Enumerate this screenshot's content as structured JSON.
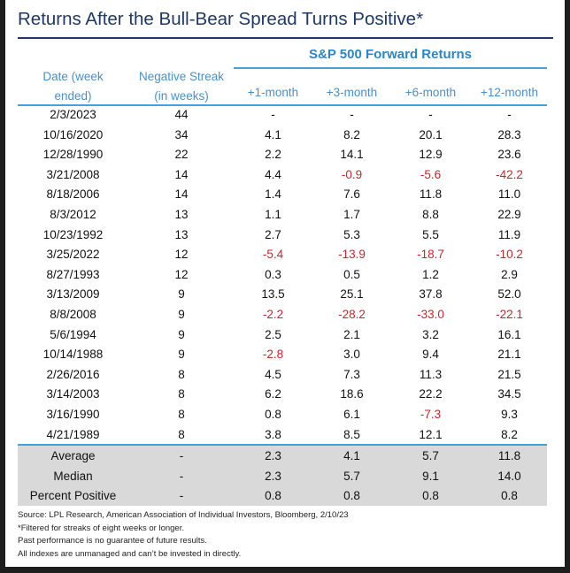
{
  "chart_data": {
    "type": "table",
    "title": "Returns After the Bull-Bear Spread Turns Positive*",
    "group_header": "S&P 500 Forward Returns",
    "columns": [
      "Date (week ended)",
      "Negative Streak (in weeks)",
      "+1-month",
      "+3-month",
      "+6-month",
      "+12-month"
    ],
    "rows": [
      [
        "2/3/2023",
        "44",
        "-",
        "-",
        "-",
        "-"
      ],
      [
        "10/16/2020",
        "34",
        "4.1",
        "8.2",
        "20.1",
        "28.3"
      ],
      [
        "12/28/1990",
        "22",
        "2.2",
        "14.1",
        "12.9",
        "23.6"
      ],
      [
        "3/21/2008",
        "14",
        "4.4",
        "-0.9",
        "-5.6",
        "-42.2"
      ],
      [
        "8/18/2006",
        "14",
        "1.4",
        "7.6",
        "11.8",
        "11.0"
      ],
      [
        "8/3/2012",
        "13",
        "1.1",
        "1.7",
        "8.8",
        "22.9"
      ],
      [
        "10/23/1992",
        "13",
        "2.7",
        "5.3",
        "5.5",
        "11.9"
      ],
      [
        "3/25/2022",
        "12",
        "-5.4",
        "-13.9",
        "-18.7",
        "-10.2"
      ],
      [
        "8/27/1993",
        "12",
        "0.3",
        "0.5",
        "1.2",
        "2.9"
      ],
      [
        "3/13/2009",
        "9",
        "13.5",
        "25.1",
        "37.8",
        "52.0"
      ],
      [
        "8/8/2008",
        "9",
        "-2.2",
        "-28.2",
        "-33.0",
        "-22.1"
      ],
      [
        "5/6/1994",
        "9",
        "2.5",
        "2.1",
        "3.2",
        "16.1"
      ],
      [
        "10/14/1988",
        "9",
        "-2.8",
        "3.0",
        "9.4",
        "21.1"
      ],
      [
        "2/26/2016",
        "8",
        "4.5",
        "7.3",
        "11.3",
        "21.5"
      ],
      [
        "3/14/2003",
        "8",
        "6.2",
        "18.6",
        "22.2",
        "34.5"
      ],
      [
        "3/16/1990",
        "8",
        "0.8",
        "6.1",
        "-7.3",
        "9.3"
      ],
      [
        "4/21/1989",
        "8",
        "3.8",
        "8.5",
        "12.1",
        "8.2"
      ]
    ],
    "summary": [
      [
        "Average",
        "-",
        "2.3",
        "4.1",
        "5.7",
        "11.8"
      ],
      [
        "Median",
        "-",
        "2.3",
        "5.7",
        "9.1",
        "14.0"
      ],
      [
        "Percent Positive",
        "-",
        "0.8",
        "0.8",
        "0.8",
        "0.8"
      ]
    ],
    "negative_color": "#c0282d",
    "header_color": "#4a8fc7",
    "title_color": "#1f3864",
    "summary_shading": "#d9d9d9"
  },
  "header": {
    "date_line1": "Date (week",
    "date_line2": "ended)",
    "streak_line1": "Negative Streak",
    "streak_line2": "(in weeks)",
    "m1": "+1-month",
    "m3": "+3-month",
    "m6": "+6-month",
    "m12": "+12-month"
  },
  "notes": [
    "Source: LPL Research, American Association of Individual Investors, Bloomberg, 2/10/23",
    "*Filtered for streaks of eight weeks or longer.",
    "Past performance is no guarantee of future results.",
    "All indexes are unmanaged and can’t be invested in directly."
  ]
}
